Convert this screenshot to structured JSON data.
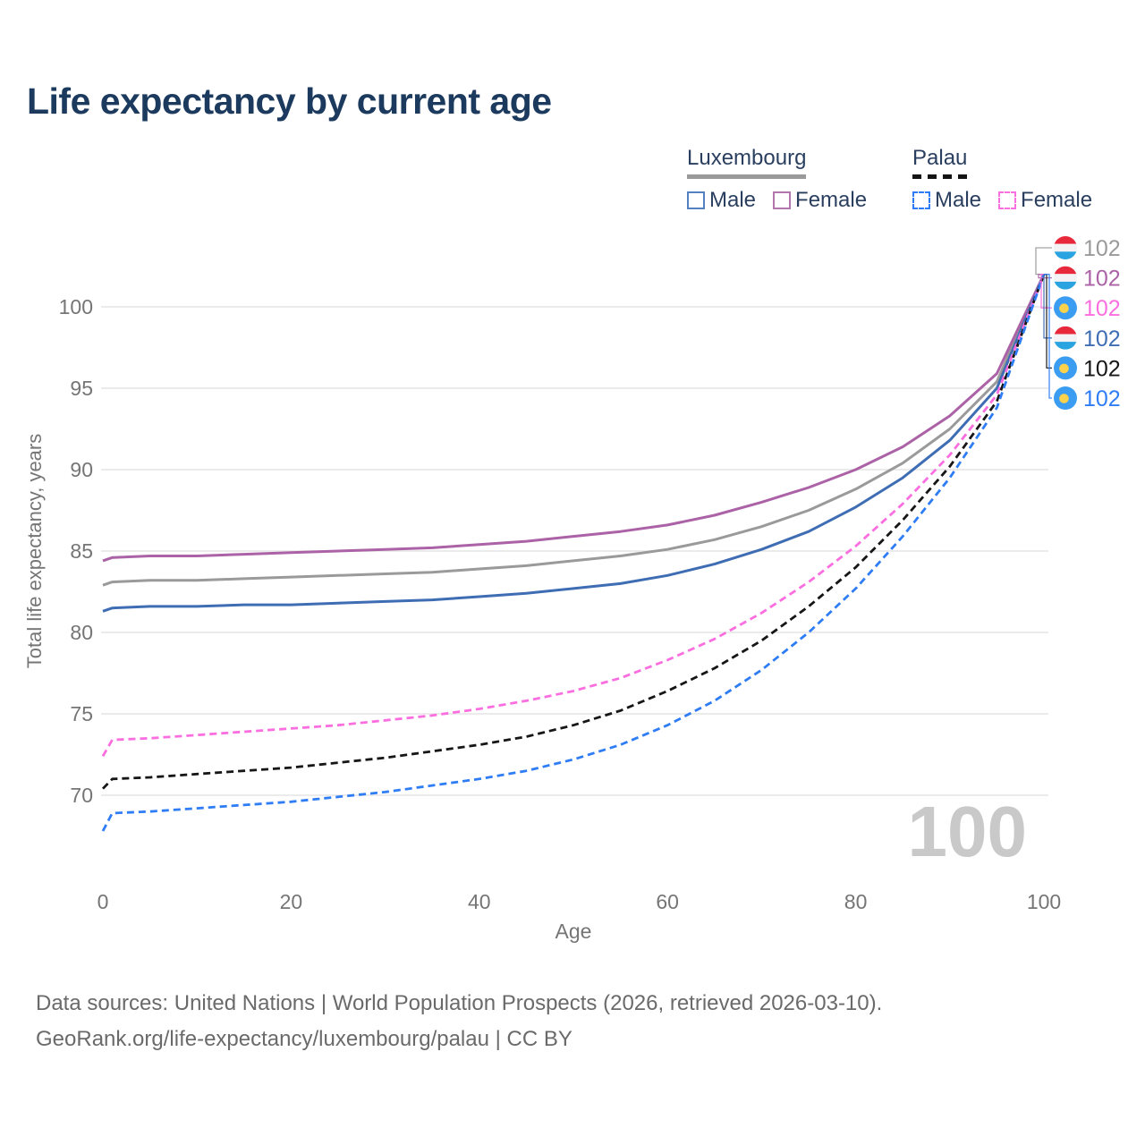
{
  "page": {
    "title": "Life expectancy by current age"
  },
  "legend": {
    "luxembourg": {
      "label": "Luxembourg",
      "male_label": "Male",
      "female_label": "Female"
    },
    "palau": {
      "label": "Palau",
      "male_label": "Male",
      "female_label": "Female"
    }
  },
  "watermark": "100",
  "footer": {
    "line1": "Data sources: United Nations | World Population Prospects (2026, retrieved 2026-03-10).",
    "line2": "GeoRank.org/life-expectancy/luxembourg/palau | CC BY"
  },
  "colors": {
    "title": "#1b3a5e",
    "axis_text": "#757575",
    "gridline": "#ebebeb",
    "watermark": "#c9c9c9",
    "lux_flag_red": "#e8293b",
    "lux_flag_white": "#f3f3f5",
    "lux_flag_blue": "#2aa4e0",
    "palau_flag_blue": "#3b9df2",
    "palau_flag_yellow": "#ffd24c"
  },
  "chart_data": {
    "type": "line",
    "title": "Life expectancy by current age",
    "xlabel": "Age",
    "ylabel": "Total life expectancy, years",
    "xlim": [
      0,
      100
    ],
    "ylim": [
      66.5,
      103.5
    ],
    "xticks": [
      0,
      20,
      40,
      60,
      80,
      100
    ],
    "yticks": [
      70,
      75,
      80,
      85,
      90,
      95,
      100
    ],
    "grid": true,
    "legend_position": "top-right",
    "ages": [
      0,
      1,
      5,
      10,
      15,
      20,
      25,
      30,
      35,
      40,
      45,
      50,
      55,
      60,
      65,
      70,
      75,
      80,
      85,
      90,
      95,
      100
    ],
    "series": [
      {
        "name": "Luxembourg Both sexes",
        "country": "Luxembourg",
        "sex": "Both",
        "color": "#9a9a9a",
        "dashed": false,
        "end_label": "102",
        "flag": "luxembourg",
        "label_row": 0,
        "values": [
          82.9,
          83.1,
          83.2,
          83.2,
          83.3,
          83.4,
          83.5,
          83.6,
          83.7,
          83.9,
          84.1,
          84.4,
          84.7,
          85.1,
          85.7,
          86.5,
          87.5,
          88.8,
          90.4,
          92.5,
          95.4,
          102
        ]
      },
      {
        "name": "Luxembourg Female",
        "country": "Luxembourg",
        "sex": "Female",
        "color": "#ab62a6",
        "dashed": false,
        "end_label": "102",
        "flag": "luxembourg",
        "label_row": 1,
        "values": [
          84.4,
          84.6,
          84.7,
          84.7,
          84.8,
          84.9,
          85.0,
          85.1,
          85.2,
          85.4,
          85.6,
          85.9,
          86.2,
          86.6,
          87.2,
          88.0,
          88.9,
          90.0,
          91.4,
          93.3,
          95.9,
          102
        ]
      },
      {
        "name": "Luxembourg Male",
        "country": "Luxembourg",
        "sex": "Male",
        "color": "#3e6db4",
        "dashed": false,
        "end_label": "102",
        "flag": "luxembourg",
        "label_row": 3,
        "values": [
          81.3,
          81.5,
          81.6,
          81.6,
          81.7,
          81.7,
          81.8,
          81.9,
          82.0,
          82.2,
          82.4,
          82.7,
          83.0,
          83.5,
          84.2,
          85.1,
          86.2,
          87.7,
          89.5,
          91.8,
          95.0,
          102
        ]
      },
      {
        "name": "Palau Female",
        "country": "Palau",
        "sex": "Female",
        "color": "#fa6ee0",
        "dashed": true,
        "end_label": "102",
        "flag": "palau",
        "label_row": 2,
        "values": [
          72.4,
          73.4,
          73.5,
          73.7,
          73.9,
          74.1,
          74.3,
          74.6,
          74.9,
          75.3,
          75.8,
          76.4,
          77.2,
          78.3,
          79.6,
          81.2,
          83.1,
          85.3,
          87.9,
          90.9,
          94.6,
          102
        ]
      },
      {
        "name": "Palau Both sexes",
        "country": "Palau",
        "sex": "Both",
        "color": "#161616",
        "dashed": true,
        "end_label": "102",
        "flag": "palau",
        "label_row": 4,
        "values": [
          70.4,
          71.0,
          71.1,
          71.3,
          71.5,
          71.7,
          72.0,
          72.3,
          72.7,
          73.1,
          73.6,
          74.3,
          75.2,
          76.4,
          77.8,
          79.5,
          81.6,
          84.0,
          86.9,
          90.2,
          94.2,
          102
        ]
      },
      {
        "name": "Palau Male",
        "country": "Palau",
        "sex": "Male",
        "color": "#2f7df5",
        "dashed": true,
        "end_label": "102",
        "flag": "palau",
        "label_row": 5,
        "values": [
          67.8,
          68.9,
          69.0,
          69.2,
          69.4,
          69.6,
          69.9,
          70.2,
          70.6,
          71.0,
          71.5,
          72.2,
          73.1,
          74.3,
          75.8,
          77.7,
          80.0,
          82.7,
          85.9,
          89.5,
          93.8,
          102
        ]
      }
    ]
  }
}
